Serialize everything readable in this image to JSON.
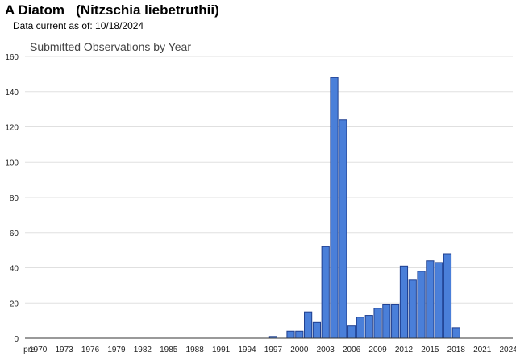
{
  "header": {
    "title": "A Diatom   (Nitzschia liebetruthii)",
    "data_current": "Data current as of: 10/18/2024"
  },
  "chart_data": {
    "type": "bar",
    "title": "Submitted Observations by Year",
    "xlabel": "",
    "ylabel": "",
    "ylim": [
      0,
      160
    ],
    "yticks": [
      0,
      20,
      40,
      60,
      80,
      100,
      120,
      140,
      160
    ],
    "grid": true,
    "colors": {
      "bar_fill": "#4a7fd9",
      "bar_stroke": "#1f3f8f",
      "grid": "#e0e0e0"
    },
    "categories": [
      "pre",
      "1970",
      "1971",
      "1972",
      "1973",
      "1974",
      "1975",
      "1976",
      "1977",
      "1978",
      "1979",
      "1980",
      "1981",
      "1982",
      "1983",
      "1984",
      "1985",
      "1986",
      "1987",
      "1988",
      "1989",
      "1990",
      "1991",
      "1992",
      "1993",
      "1994",
      "1995",
      "1996",
      "1997",
      "1998",
      "1999",
      "2000",
      "2001",
      "2002",
      "2003",
      "2004",
      "2005",
      "2006",
      "2007",
      "2008",
      "2009",
      "2010",
      "2011",
      "2012",
      "2013",
      "2014",
      "2015",
      "2016",
      "2017",
      "2018",
      "2019",
      "2020",
      "2021",
      "2022",
      "2023",
      "2024"
    ],
    "tick_labels": [
      "pre",
      "1970",
      "1973",
      "1976",
      "1979",
      "1982",
      "1985",
      "1988",
      "1991",
      "1994",
      "1997",
      "2000",
      "2003",
      "2006",
      "2009",
      "2012",
      "2015",
      "2018",
      "2021",
      "2024"
    ],
    "values": [
      0,
      0,
      0,
      0,
      0,
      0,
      0,
      0,
      0,
      0,
      0,
      0,
      0,
      0,
      0,
      0,
      0,
      0,
      0,
      0,
      0,
      0,
      0,
      0,
      0,
      0,
      0,
      0,
      1,
      0,
      4,
      4,
      15,
      9,
      52,
      148,
      124,
      7,
      12,
      13,
      17,
      19,
      19,
      41,
      33,
      38,
      44,
      43,
      48,
      6,
      0,
      0,
      0,
      0,
      0,
      0
    ]
  }
}
